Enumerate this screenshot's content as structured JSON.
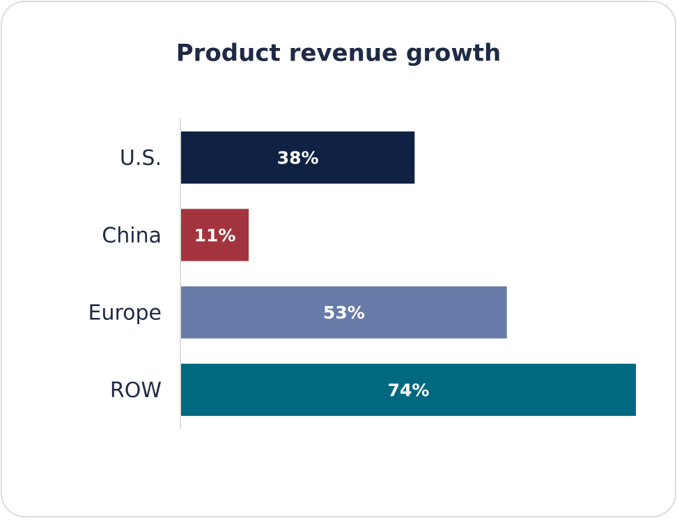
{
  "chart_data": {
    "type": "hbar",
    "title": "Product revenue growth",
    "categories": [
      "U.S.",
      "China",
      "Europe",
      "ROW"
    ],
    "values": [
      38,
      11,
      53,
      74
    ],
    "value_labels": [
      "38%",
      "11%",
      "53%",
      "74%"
    ],
    "colors": [
      "#0f2244",
      "#a3343d",
      "#677ba9",
      "#006880"
    ]
  }
}
